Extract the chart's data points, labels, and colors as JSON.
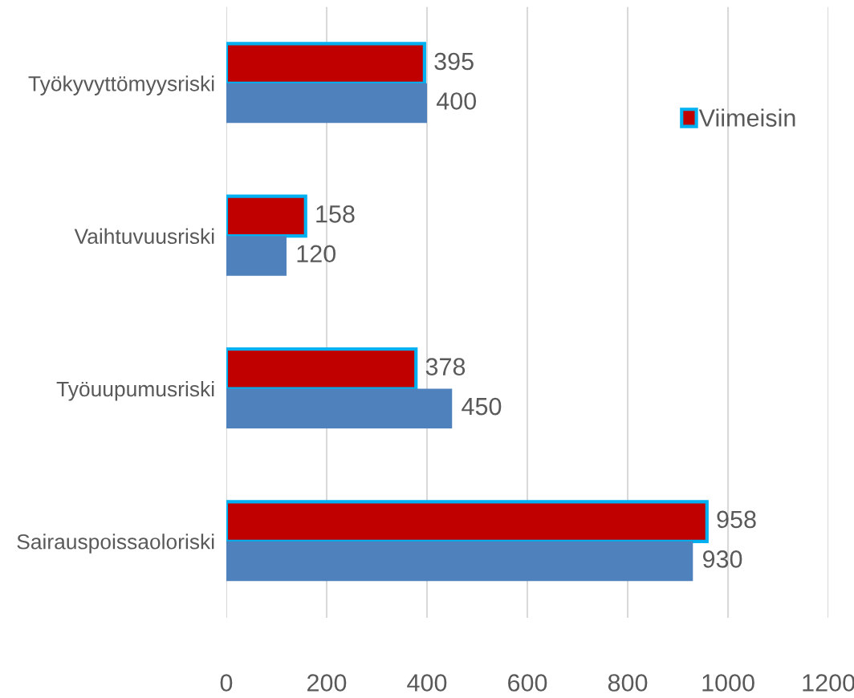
{
  "chart_data": {
    "type": "bar",
    "orientation": "horizontal",
    "categories": [
      "Työkyvyttömyysriski",
      "Vaihtuvuusriski",
      "Työuupumusriski",
      "Sairauspoissaoloriski"
    ],
    "series": [
      {
        "name": "Viimeisin",
        "color": "#c00000",
        "values": [
          395,
          158,
          378,
          958
        ]
      },
      {
        "color": "#4f81bd",
        "values": [
          400,
          120,
          450,
          930
        ]
      }
    ],
    "xlim": [
      0,
      1200
    ],
    "xticks": [
      0,
      200,
      400,
      600,
      800,
      1000,
      1200
    ],
    "grid": "x",
    "legend": "top right",
    "data_labels": true
  }
}
